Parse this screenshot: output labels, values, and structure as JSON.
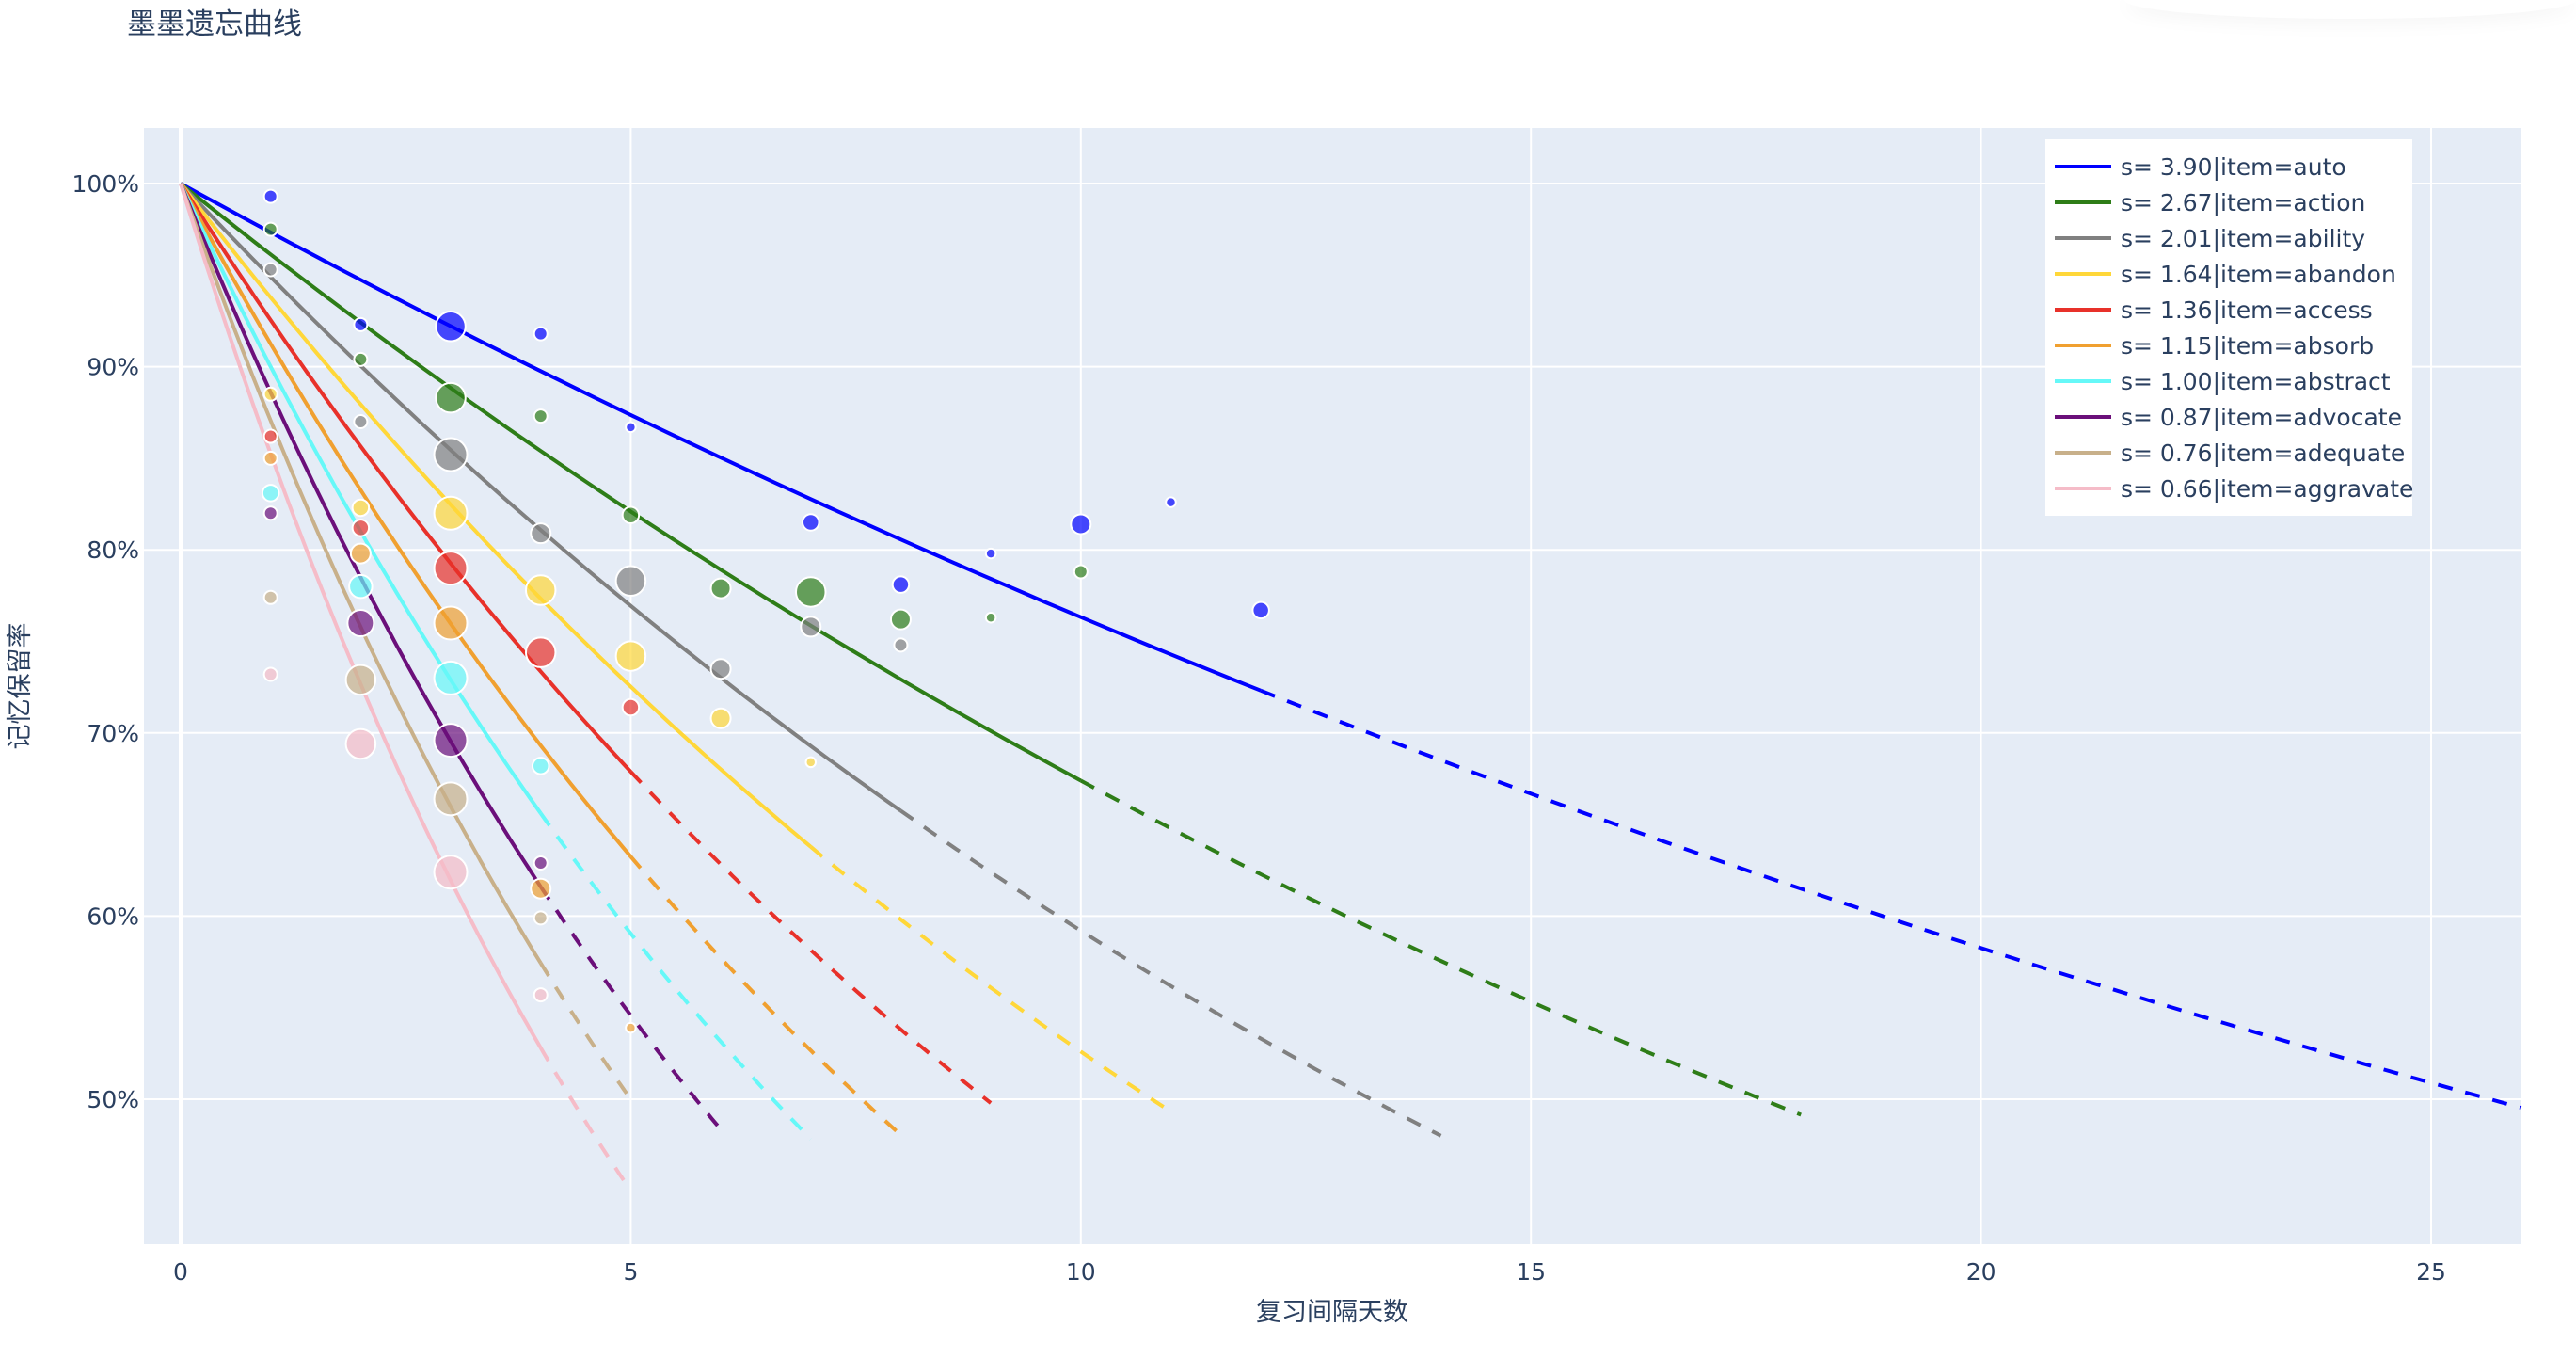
{
  "page": {
    "title": "墨墨遗忘曲线"
  },
  "chart_data": {
    "type": "line",
    "title": "墨墨遗忘曲线",
    "xlabel": "复习间隔天数",
    "ylabel": "记忆保留率",
    "xlim": [
      -0.4,
      26
    ],
    "ylim": [
      43,
      103
    ],
    "x_ticks": [
      0,
      5,
      10,
      15,
      20,
      25
    ],
    "x_tick_labels": [
      "0",
      "5",
      "10",
      "15",
      "20",
      "25"
    ],
    "y_ticks": [
      50,
      60,
      70,
      80,
      90,
      100
    ],
    "y_tick_labels": [
      "50%",
      "60%",
      "70%",
      "80%",
      "90%",
      "100%"
    ],
    "grid": true,
    "legend_position": "top-right inside",
    "model": "R = 0.9^(t/s); solid = fitted range, dashed = extrapolation",
    "series": [
      {
        "name": "s= 3.90|item=auto",
        "s": 3.9,
        "color": "#0000ff",
        "solid_end": 12,
        "dash_end": 26,
        "points": [
          [
            1,
            99.3,
            4
          ],
          [
            2,
            92.3,
            4
          ],
          [
            3,
            92.2,
            9
          ],
          [
            4,
            91.8,
            4
          ],
          [
            5,
            86.7,
            3
          ],
          [
            7,
            81.5,
            5
          ],
          [
            8,
            78.1,
            5
          ],
          [
            9,
            79.8,
            3
          ],
          [
            10,
            81.4,
            6
          ],
          [
            11,
            82.6,
            3
          ],
          [
            12,
            76.7,
            5
          ]
        ]
      },
      {
        "name": "s= 2.67|item=action",
        "s": 2.67,
        "color": "#2e7d18",
        "solid_end": 10,
        "dash_end": 18,
        "points": [
          [
            1,
            97.5,
            4
          ],
          [
            2,
            90.4,
            4
          ],
          [
            3,
            88.3,
            9
          ],
          [
            4,
            87.3,
            4
          ],
          [
            5,
            81.9,
            5
          ],
          [
            6,
            77.9,
            6
          ],
          [
            7,
            77.7,
            9
          ],
          [
            8,
            76.2,
            6
          ],
          [
            9,
            76.3,
            3
          ],
          [
            10,
            78.8,
            4
          ]
        ]
      },
      {
        "name": "s= 2.01|item=ability",
        "s": 2.01,
        "color": "#808080",
        "solid_end": 8,
        "dash_end": 14,
        "points": [
          [
            1,
            95.3,
            4
          ],
          [
            2,
            87.0,
            4
          ],
          [
            3,
            85.2,
            10
          ],
          [
            4,
            80.9,
            6
          ],
          [
            5,
            78.3,
            9
          ],
          [
            6,
            73.5,
            6
          ],
          [
            7,
            75.8,
            6
          ],
          [
            8,
            74.8,
            4
          ]
        ]
      },
      {
        "name": "s= 1.64|item=abandon",
        "s": 1.64,
        "color": "#ffd739",
        "solid_end": 7,
        "dash_end": 11,
        "points": [
          [
            1,
            88.5,
            4
          ],
          [
            2,
            82.3,
            5
          ],
          [
            3,
            82.0,
            10
          ],
          [
            4,
            77.8,
            9
          ],
          [
            5,
            74.2,
            9
          ],
          [
            6,
            70.8,
            6
          ],
          [
            7,
            68.4,
            3
          ]
        ]
      },
      {
        "name": "s= 1.36|item=access",
        "s": 1.36,
        "color": "#e8312a",
        "solid_end": 5,
        "dash_end": 9,
        "points": [
          [
            1,
            86.2,
            4
          ],
          [
            2,
            81.2,
            5
          ],
          [
            3,
            79.0,
            10
          ],
          [
            4,
            74.4,
            9
          ],
          [
            5,
            71.4,
            5
          ]
        ]
      },
      {
        "name": "s= 1.15|item=absorb",
        "s": 1.15,
        "color": "#f0a030",
        "solid_end": 5,
        "dash_end": 8,
        "points": [
          [
            1,
            85.0,
            4
          ],
          [
            2,
            79.8,
            6
          ],
          [
            3,
            76.0,
            10
          ],
          [
            4,
            61.5,
            6
          ],
          [
            5,
            53.9,
            3
          ]
        ]
      },
      {
        "name": "s= 1.00|item=abstract",
        "s": 1.0,
        "color": "#66f8f8",
        "solid_end": 4,
        "dash_end": 7,
        "points": [
          [
            1,
            83.1,
            5
          ],
          [
            2,
            78.0,
            7
          ],
          [
            3,
            73.0,
            10
          ],
          [
            4,
            68.2,
            5
          ]
        ]
      },
      {
        "name": "s= 0.87|item=advocate",
        "s": 0.87,
        "color": "#6b0f7a",
        "solid_end": 4,
        "dash_end": 6,
        "points": [
          [
            1,
            82.0,
            4
          ],
          [
            2,
            76.0,
            8
          ],
          [
            3,
            69.6,
            10
          ],
          [
            4,
            62.9,
            4
          ]
        ]
      },
      {
        "name": "s= 0.76|item=adequate",
        "s": 0.76,
        "color": "#c8b08a",
        "solid_end": 4,
        "dash_end": 5,
        "points": [
          [
            1,
            77.4,
            4
          ],
          [
            2,
            72.9,
            9
          ],
          [
            3,
            66.4,
            10
          ],
          [
            4,
            59.9,
            4
          ]
        ]
      },
      {
        "name": "s= 0.66|item=aggravate",
        "s": 0.66,
        "color": "#f5bcc8",
        "solid_end": 4,
        "dash_end": 5,
        "points": [
          [
            1,
            73.2,
            4
          ],
          [
            2,
            69.4,
            9
          ],
          [
            3,
            62.4,
            10
          ],
          [
            4,
            55.7,
            4
          ]
        ]
      }
    ]
  }
}
